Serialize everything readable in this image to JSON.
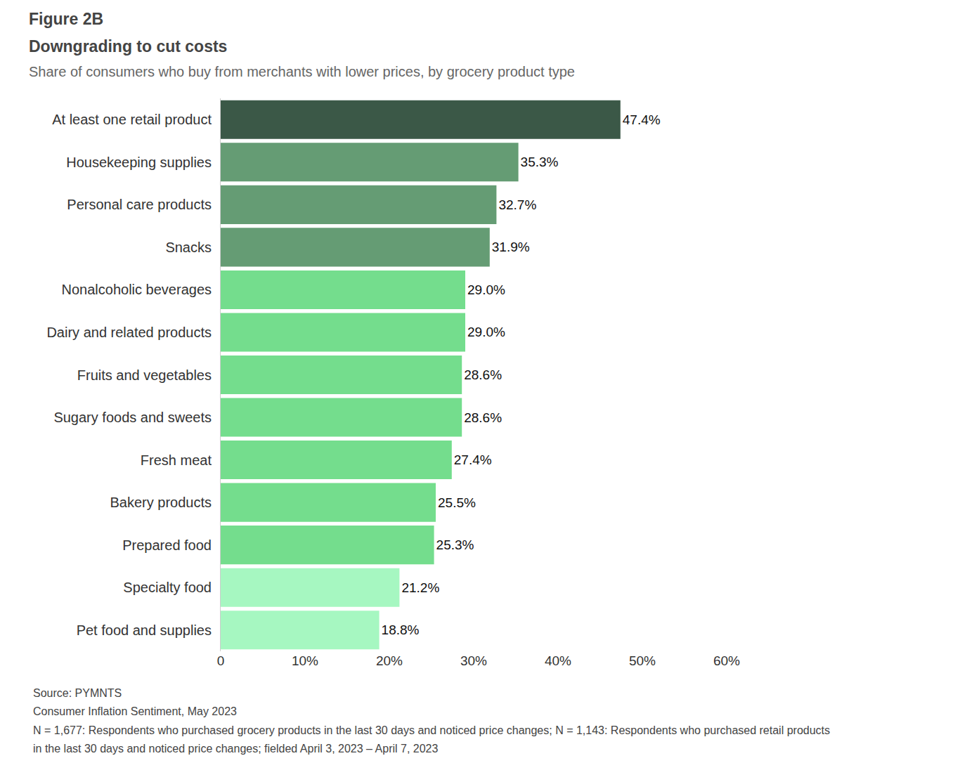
{
  "chart_data": {
    "type": "bar",
    "orientation": "horizontal",
    "title": "Figure 2B",
    "subtitle": [
      "Downgrading to cut costs",
      "Share of consumers who buy from merchants with lower prices, by grocery product type"
    ],
    "categories": [
      "At least one retail product",
      "Housekeeping supplies",
      "Personal care products",
      "Snacks",
      "Nonalcoholic beverages",
      "Dairy and related products",
      "Fruits and vegetables",
      "Sugary foods and sweets",
      "Fresh meat",
      "Bakery products",
      "Prepared food",
      "Specialty food",
      "Pet food and supplies"
    ],
    "values": [
      47.4,
      35.3,
      32.7,
      31.9,
      29.0,
      29.0,
      28.6,
      28.6,
      27.4,
      25.5,
      25.3,
      21.2,
      18.8
    ],
    "value_labels": [
      "47.4%",
      "35.3%",
      "32.7%",
      "31.9%",
      "29.0%",
      "29.0%",
      "28.6%",
      "28.6%",
      "27.4%",
      "25.5%",
      "25.3%",
      "21.2%",
      "18.8%"
    ],
    "colors": [
      "#3b5847",
      "#659c74",
      "#659c74",
      "#659c74",
      "#74dd8d",
      "#74dd8d",
      "#74dd8d",
      "#74dd8d",
      "#74dd8d",
      "#74dd8d",
      "#74dd8d",
      "#a6f7c1",
      "#a6f7c1"
    ],
    "data_labels": true,
    "grid": false,
    "xlim": [
      0,
      60
    ],
    "xticks": [
      0,
      {
        "value": 10,
        "label": "10%"
      },
      {
        "value": 20,
        "label": "20%"
      },
      {
        "value": 30,
        "label": "30%"
      },
      {
        "value": 40,
        "label": "40%"
      },
      {
        "value": 50,
        "label": "50%"
      },
      {
        "value": 60,
        "label": "60%"
      }
    ],
    "annotations": [
      "Source: PYMNTS",
      "Consumer Inflation Sentiment, May 2023",
      "N = 1,677: Respondents who purchased grocery products in the last 30 days and noticed price changes; N = 1,143: Respondents who purchased retail products",
      "in the last 30 days and noticed price changes; fielded April 3, 2023 – April 7, 2023"
    ]
  }
}
